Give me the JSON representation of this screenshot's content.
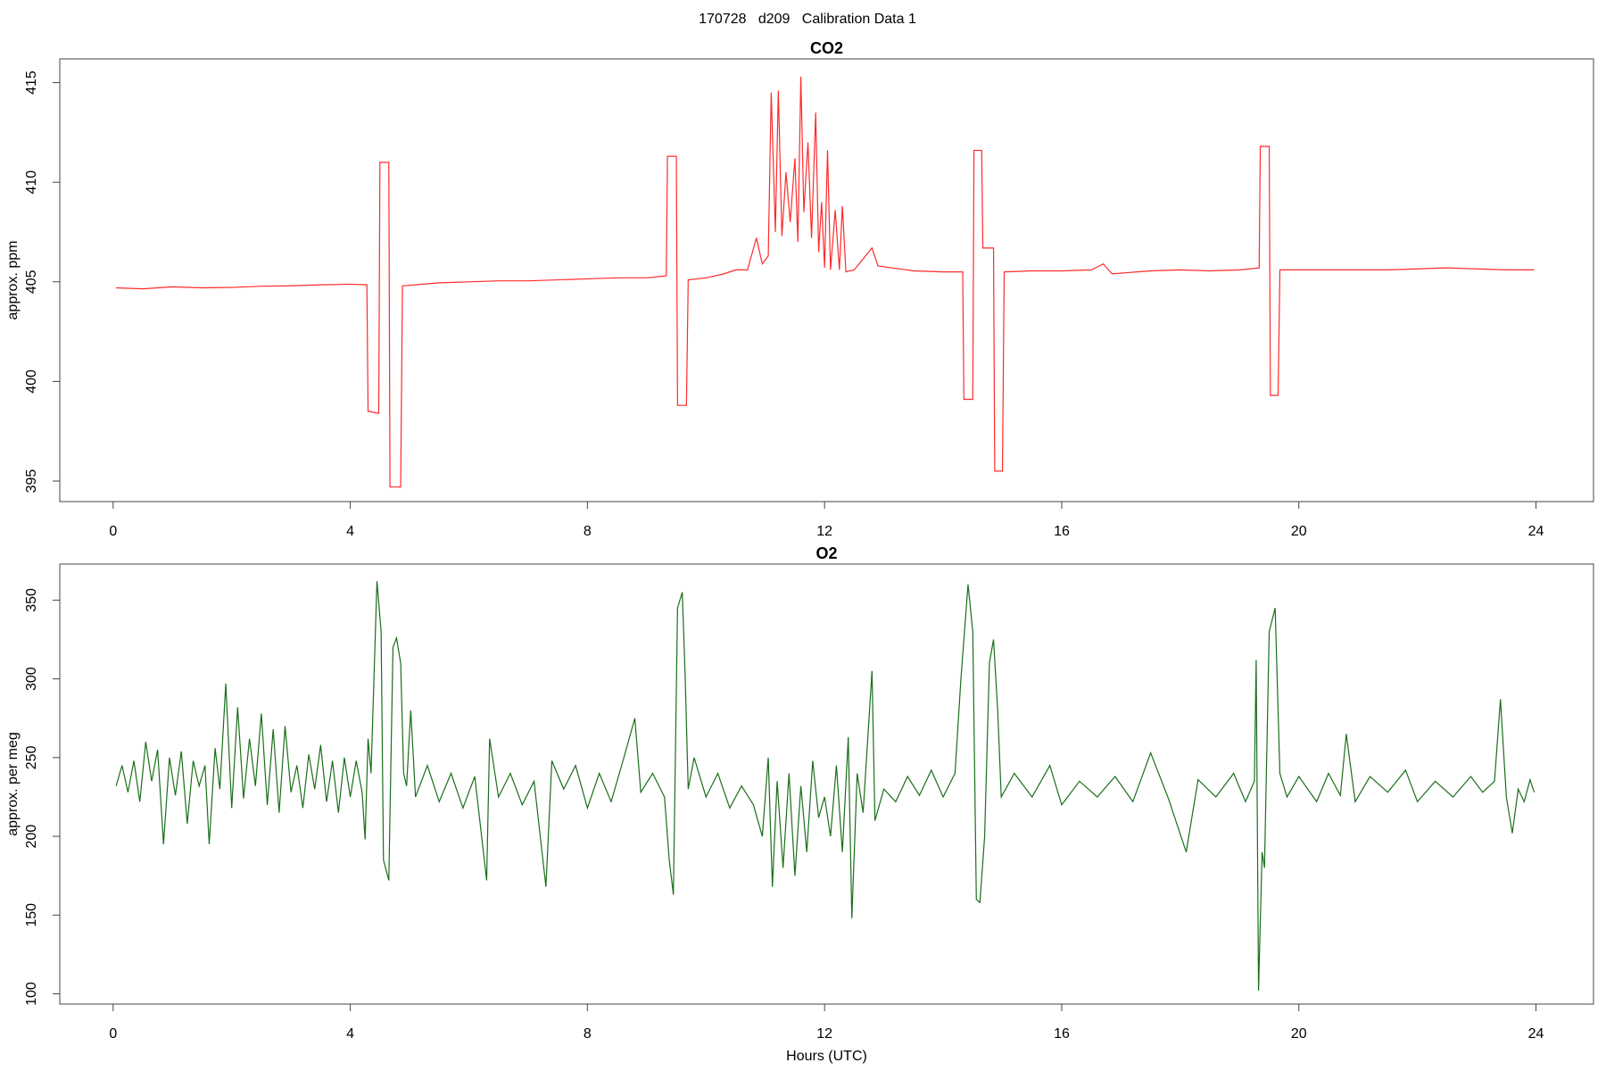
{
  "title": "170728   d209   Calibration Data 1",
  "chart_data": [
    {
      "type": "line",
      "title": "CO2",
      "y_label": "approx. ppm",
      "color": "#ff2a2a",
      "xlim": [
        -0.9,
        24.97
      ],
      "ylim": [
        393.97,
        416.19
      ],
      "xticks": [
        0,
        4,
        8,
        12,
        16,
        20,
        24
      ],
      "yticks": [
        395,
        400,
        405,
        410,
        415
      ],
      "x": [
        0.05,
        0.5,
        1.0,
        1.5,
        2.0,
        2.5,
        3.0,
        3.5,
        4.0,
        4.28,
        4.3,
        4.48,
        4.5,
        4.65,
        4.67,
        4.85,
        4.88,
        5.5,
        6.0,
        6.5,
        7.0,
        7.5,
        8.0,
        8.5,
        9.0,
        9.33,
        9.35,
        9.5,
        9.52,
        9.67,
        9.7,
        10.0,
        10.3,
        10.5,
        10.7,
        10.85,
        10.95,
        11.05,
        11.1,
        11.17,
        11.22,
        11.28,
        11.35,
        11.42,
        11.5,
        11.55,
        11.6,
        11.65,
        11.72,
        11.78,
        11.85,
        11.9,
        11.95,
        12.0,
        12.05,
        12.1,
        12.18,
        12.25,
        12.3,
        12.36,
        12.5,
        12.8,
        12.9,
        13.5,
        14.0,
        14.33,
        14.35,
        14.5,
        14.52,
        14.65,
        14.67,
        14.85,
        14.87,
        15.0,
        15.03,
        15.5,
        16.0,
        16.5,
        16.7,
        16.85,
        17.5,
        18.0,
        18.5,
        19.0,
        19.33,
        19.35,
        19.5,
        19.52,
        19.65,
        19.68,
        20.5,
        21.0,
        21.5,
        22.0,
        22.5,
        23.0,
        23.5,
        23.97
      ],
      "values": [
        404.7,
        404.65,
        404.75,
        404.7,
        404.72,
        404.78,
        404.8,
        404.85,
        404.88,
        404.85,
        398.5,
        398.4,
        411.0,
        411.0,
        394.7,
        394.7,
        404.8,
        404.95,
        405.0,
        405.05,
        405.05,
        405.1,
        405.15,
        405.2,
        405.2,
        405.3,
        411.3,
        411.3,
        398.8,
        398.8,
        405.1,
        405.2,
        405.4,
        405.6,
        405.6,
        407.2,
        405.9,
        406.3,
        414.5,
        407.5,
        414.6,
        407.3,
        410.5,
        408.0,
        411.2,
        407.0,
        415.3,
        408.5,
        412.0,
        407.2,
        413.5,
        406.5,
        409.0,
        405.7,
        411.6,
        405.6,
        408.6,
        405.6,
        408.8,
        405.5,
        405.6,
        406.7,
        405.8,
        405.55,
        405.5,
        405.5,
        399.1,
        399.1,
        411.6,
        411.6,
        406.7,
        406.7,
        395.5,
        395.5,
        405.5,
        405.55,
        405.55,
        405.6,
        405.9,
        405.4,
        405.55,
        405.6,
        405.55,
        405.6,
        405.7,
        411.8,
        411.8,
        399.3,
        399.3,
        405.6,
        405.6,
        405.6,
        405.6,
        405.65,
        405.7,
        405.65,
        405.6,
        405.6
      ]
    },
    {
      "type": "line",
      "title": "O2",
      "y_label": "approx. per meg",
      "x_label": "Hours (UTC)",
      "color": "#1a6e1a",
      "xlim": [
        -0.9,
        24.97
      ],
      "ylim": [
        93.5,
        372.9
      ],
      "xticks": [
        0,
        4,
        8,
        12,
        16,
        20,
        24
      ],
      "yticks": [
        100,
        150,
        200,
        250,
        300,
        350
      ],
      "x": [
        0.05,
        0.15,
        0.25,
        0.35,
        0.45,
        0.55,
        0.65,
        0.75,
        0.85,
        0.95,
        1.05,
        1.15,
        1.25,
        1.35,
        1.45,
        1.55,
        1.62,
        1.72,
        1.8,
        1.9,
        2.0,
        2.1,
        2.2,
        2.3,
        2.4,
        2.5,
        2.6,
        2.7,
        2.8,
        2.9,
        3.0,
        3.1,
        3.2,
        3.3,
        3.4,
        3.5,
        3.6,
        3.7,
        3.8,
        3.9,
        4.0,
        4.1,
        4.2,
        4.25,
        4.3,
        4.35,
        4.45,
        4.52,
        4.56,
        4.65,
        4.72,
        4.78,
        4.85,
        4.9,
        4.95,
        5.02,
        5.1,
        5.3,
        5.5,
        5.7,
        5.9,
        6.1,
        6.3,
        6.35,
        6.5,
        6.7,
        6.9,
        7.1,
        7.3,
        7.4,
        7.6,
        7.8,
        8.0,
        8.2,
        8.4,
        8.6,
        8.8,
        8.9,
        9.1,
        9.3,
        9.38,
        9.45,
        9.52,
        9.6,
        9.65,
        9.7,
        9.8,
        10.0,
        10.2,
        10.4,
        10.6,
        10.8,
        10.95,
        11.05,
        11.12,
        11.2,
        11.3,
        11.4,
        11.5,
        11.6,
        11.7,
        11.8,
        11.9,
        12.0,
        12.1,
        12.2,
        12.3,
        12.4,
        12.46,
        12.55,
        12.65,
        12.8,
        12.85,
        13.0,
        13.2,
        13.4,
        13.6,
        13.8,
        14.0,
        14.2,
        14.3,
        14.42,
        14.5,
        14.56,
        14.62,
        14.7,
        14.78,
        14.85,
        14.92,
        14.98,
        15.2,
        15.5,
        15.8,
        16.0,
        16.3,
        16.6,
        16.9,
        17.2,
        17.5,
        17.8,
        18.1,
        18.3,
        18.6,
        18.9,
        19.1,
        19.25,
        19.28,
        19.32,
        19.38,
        19.42,
        19.5,
        19.6,
        19.68,
        19.8,
        20.0,
        20.3,
        20.5,
        20.7,
        20.8,
        20.95,
        21.2,
        21.5,
        21.8,
        22.0,
        22.3,
        22.6,
        22.9,
        23.1,
        23.3,
        23.4,
        23.5,
        23.6,
        23.7,
        23.8,
        23.9,
        23.97
      ],
      "values": [
        232,
        245,
        228,
        248,
        222,
        260,
        235,
        255,
        195,
        250,
        226,
        254,
        208,
        248,
        232,
        245,
        195,
        256,
        230,
        297,
        218,
        282,
        224,
        262,
        232,
        278,
        220,
        268,
        215,
        270,
        228,
        245,
        218,
        252,
        230,
        258,
        222,
        248,
        215,
        250,
        225,
        248,
        228,
        198,
        262,
        240,
        362,
        330,
        185,
        172,
        320,
        326,
        310,
        240,
        232,
        280,
        225,
        245,
        222,
        240,
        218,
        238,
        172,
        262,
        225,
        240,
        220,
        235,
        168,
        248,
        230,
        245,
        218,
        240,
        222,
        248,
        275,
        228,
        240,
        225,
        185,
        163,
        345,
        355,
        300,
        230,
        250,
        225,
        240,
        218,
        232,
        220,
        200,
        250,
        168,
        235,
        180,
        240,
        175,
        232,
        190,
        248,
        212,
        225,
        200,
        245,
        190,
        263,
        148,
        240,
        215,
        305,
        210,
        230,
        222,
        238,
        226,
        242,
        225,
        240,
        300,
        360,
        330,
        160,
        158,
        200,
        310,
        325,
        280,
        225,
        240,
        225,
        245,
        220,
        235,
        225,
        238,
        222,
        253,
        224,
        190,
        236,
        225,
        240,
        222,
        235,
        312,
        102,
        190,
        180,
        330,
        345,
        240,
        225,
        238,
        222,
        240,
        226,
        265,
        222,
        238,
        228,
        242,
        222,
        235,
        225,
        238,
        228,
        235,
        287,
        225,
        202,
        230,
        222,
        236,
        228
      ]
    }
  ]
}
